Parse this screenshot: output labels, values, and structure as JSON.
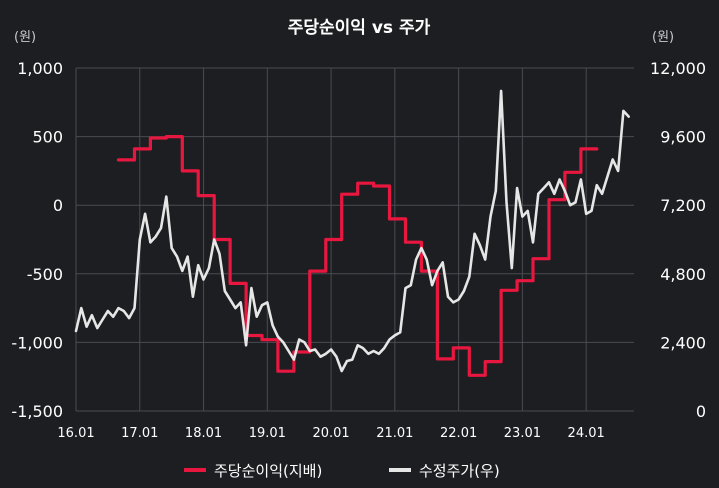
{
  "chart_data": {
    "type": "line",
    "title": "주당순이익 vs 주가",
    "left_unit": "(원)",
    "right_unit": "(원)",
    "x_ticks": [
      "16.01",
      "17.01",
      "18.01",
      "19.01",
      "20.01",
      "21.01",
      "22.01",
      "23.01",
      "24.01"
    ],
    "y_left": {
      "min": -1500,
      "max": 1000,
      "ticks": [
        1000,
        500,
        0,
        -500,
        -1000,
        -1500
      ],
      "tick_labels": [
        "1,000",
        "500",
        "0",
        "-500",
        "-1,000",
        "-1,500"
      ]
    },
    "y_right": {
      "min": 0,
      "max": 12000,
      "ticks": [
        12000,
        9600,
        7200,
        4800,
        2400,
        0
      ],
      "tick_labels": [
        "12,000",
        "9,600",
        "7,200",
        "4,800",
        "2,400",
        "0"
      ]
    },
    "grid": true,
    "legend_position": "bottom",
    "series": [
      {
        "name": "주당순이익(지배)",
        "axis": "left",
        "color": "#e8173f",
        "points": [
          [
            "16.09",
            330
          ],
          [
            "16.12",
            330
          ],
          [
            "16.12",
            410
          ],
          [
            "17.03",
            410
          ],
          [
            "17.03",
            490
          ],
          [
            "17.06",
            490
          ],
          [
            "17.06",
            500
          ],
          [
            "17.09",
            500
          ],
          [
            "17.09",
            250
          ],
          [
            "17.12",
            250
          ],
          [
            "17.12",
            70
          ],
          [
            "18.03",
            70
          ],
          [
            "18.03",
            -250
          ],
          [
            "18.06",
            -250
          ],
          [
            "18.06",
            -570
          ],
          [
            "18.09",
            -570
          ],
          [
            "18.09",
            -950
          ],
          [
            "18.12",
            -950
          ],
          [
            "18.12",
            -980
          ],
          [
            "19.03",
            -980
          ],
          [
            "19.03",
            -1210
          ],
          [
            "19.06",
            -1210
          ],
          [
            "19.06",
            -1070
          ],
          [
            "19.09",
            -1070
          ],
          [
            "19.09",
            -480
          ],
          [
            "19.12",
            -480
          ],
          [
            "19.12",
            -250
          ],
          [
            "20.03",
            -250
          ],
          [
            "20.03",
            80
          ],
          [
            "20.06",
            80
          ],
          [
            "20.06",
            160
          ],
          [
            "20.09",
            160
          ],
          [
            "20.09",
            140
          ],
          [
            "20.12",
            140
          ],
          [
            "20.12",
            -100
          ],
          [
            "21.03",
            -100
          ],
          [
            "21.03",
            -270
          ],
          [
            "21.06",
            -270
          ],
          [
            "21.06",
            -480
          ],
          [
            "21.09",
            -480
          ],
          [
            "21.09",
            -1120
          ],
          [
            "21.12",
            -1120
          ],
          [
            "21.12",
            -1040
          ],
          [
            "22.03",
            -1040
          ],
          [
            "22.03",
            -1240
          ],
          [
            "22.06",
            -1240
          ],
          [
            "22.06",
            -1140
          ],
          [
            "22.09",
            -1140
          ],
          [
            "22.09",
            -620
          ],
          [
            "22.12",
            -620
          ],
          [
            "22.12",
            -550
          ],
          [
            "23.03",
            -550
          ],
          [
            "23.03",
            -390
          ],
          [
            "23.06",
            -390
          ],
          [
            "23.06",
            40
          ],
          [
            "23.09",
            40
          ],
          [
            "23.09",
            240
          ],
          [
            "23.12",
            240
          ],
          [
            "23.12",
            410
          ],
          [
            "24.03",
            410
          ]
        ]
      },
      {
        "name": "수정주가(우)",
        "axis": "right",
        "color": "#e6e6e6",
        "points": [
          [
            "16.01",
            2800
          ],
          [
            "16.02",
            3600
          ],
          [
            "16.03",
            2950
          ],
          [
            "16.04",
            3350
          ],
          [
            "16.05",
            2900
          ],
          [
            "16.06",
            3200
          ],
          [
            "16.07",
            3500
          ],
          [
            "16.08",
            3300
          ],
          [
            "16.09",
            3600
          ],
          [
            "16.10",
            3500
          ],
          [
            "16.11",
            3250
          ],
          [
            "16.12",
            3600
          ],
          [
            "17.01",
            6000
          ],
          [
            "17.02",
            6900
          ],
          [
            "17.03",
            5900
          ],
          [
            "17.04",
            6100
          ],
          [
            "17.05",
            6400
          ],
          [
            "17.06",
            7500
          ],
          [
            "17.07",
            5700
          ],
          [
            "17.08",
            5400
          ],
          [
            "17.09",
            4900
          ],
          [
            "17.10",
            5400
          ],
          [
            "17.11",
            4000
          ],
          [
            "17.12",
            5100
          ],
          [
            "18.01",
            4600
          ],
          [
            "18.02",
            5000
          ],
          [
            "18.03",
            6000
          ],
          [
            "18.04",
            5500
          ],
          [
            "18.05",
            4200
          ],
          [
            "18.06",
            3900
          ],
          [
            "18.07",
            3600
          ],
          [
            "18.08",
            3800
          ],
          [
            "18.09",
            2300
          ],
          [
            "18.10",
            4300
          ],
          [
            "18.11",
            3300
          ],
          [
            "18.12",
            3700
          ],
          [
            "19.01",
            3800
          ],
          [
            "19.02",
            3000
          ],
          [
            "19.03",
            2600
          ],
          [
            "19.04",
            2400
          ],
          [
            "19.05",
            2100
          ],
          [
            "19.06",
            1800
          ],
          [
            "19.07",
            2500
          ],
          [
            "19.08",
            2400
          ],
          [
            "19.09",
            2100
          ],
          [
            "19.10",
            2150
          ],
          [
            "19.11",
            1900
          ],
          [
            "19.12",
            2000
          ],
          [
            "20.01",
            2150
          ],
          [
            "20.02",
            1900
          ],
          [
            "20.03",
            1400
          ],
          [
            "20.04",
            1750
          ],
          [
            "20.05",
            1800
          ],
          [
            "20.06",
            2300
          ],
          [
            "20.07",
            2200
          ],
          [
            "20.08",
            2000
          ],
          [
            "20.09",
            2100
          ],
          [
            "20.10",
            2000
          ],
          [
            "20.11",
            2200
          ],
          [
            "20.12",
            2500
          ],
          [
            "21.01",
            2650
          ],
          [
            "21.02",
            2750
          ],
          [
            "21.03",
            4300
          ],
          [
            "21.04",
            4400
          ],
          [
            "21.05",
            5300
          ],
          [
            "21.06",
            5700
          ],
          [
            "21.07",
            5300
          ],
          [
            "21.08",
            4400
          ],
          [
            "21.09",
            4900
          ],
          [
            "21.10",
            5200
          ],
          [
            "21.11",
            4000
          ],
          [
            "21.12",
            3800
          ],
          [
            "22.01",
            3900
          ],
          [
            "22.02",
            4200
          ],
          [
            "22.03",
            4700
          ],
          [
            "22.04",
            6200
          ],
          [
            "22.05",
            5800
          ],
          [
            "22.06",
            5300
          ],
          [
            "22.07",
            6800
          ],
          [
            "22.08",
            7700
          ],
          [
            "22.09",
            11200
          ],
          [
            "22.10",
            7300
          ],
          [
            "22.11",
            5000
          ],
          [
            "22.12",
            7800
          ],
          [
            "23.01",
            6800
          ],
          [
            "23.02",
            7000
          ],
          [
            "23.03",
            5900
          ],
          [
            "23.04",
            7600
          ],
          [
            "23.05",
            7800
          ],
          [
            "23.06",
            8000
          ],
          [
            "23.07",
            7600
          ],
          [
            "23.08",
            8100
          ],
          [
            "23.09",
            7700
          ],
          [
            "23.10",
            7200
          ],
          [
            "23.11",
            7300
          ],
          [
            "23.12",
            8100
          ],
          [
            "24.01",
            6900
          ],
          [
            "24.02",
            7000
          ],
          [
            "24.03",
            7900
          ],
          [
            "24.04",
            7600
          ],
          [
            "24.05",
            8200
          ],
          [
            "24.06",
            8800
          ],
          [
            "24.07",
            8400
          ],
          [
            "24.08",
            10500
          ],
          [
            "24.09",
            10300
          ]
        ]
      }
    ]
  }
}
